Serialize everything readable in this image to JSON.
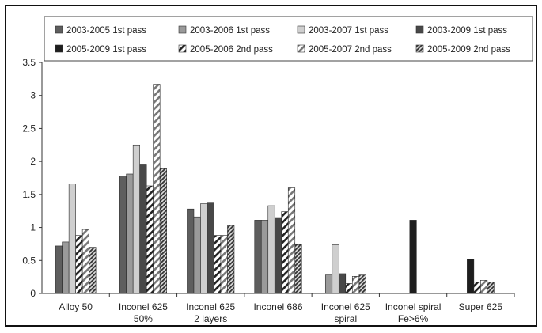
{
  "chart_data": {
    "type": "bar",
    "categories": [
      [
        "Alloy 50"
      ],
      [
        "Inconel 625",
        "50%"
      ],
      [
        "Inconel 625",
        "2 layers"
      ],
      [
        "Inconel 686"
      ],
      [
        "Inconel 625",
        "spiral"
      ],
      [
        "Inconel spiral",
        "Fe>6%"
      ],
      [
        "Super 625"
      ]
    ],
    "ylim": [
      0,
      3.5
    ],
    "yticks": [
      "0",
      "0.5",
      "1",
      "1.5",
      "2",
      "2.5",
      "3",
      "3.5"
    ],
    "grid": false,
    "legend_position": "top",
    "series": [
      {
        "name": "2003-2005 1st pass",
        "color": "#5e5e5e",
        "pattern": "solid",
        "values": [
          0.72,
          1.78,
          1.28,
          1.11,
          null,
          null,
          null
        ]
      },
      {
        "name": "2003-2006 1st pass",
        "color": "#9a9a9a",
        "pattern": "solid",
        "values": [
          0.78,
          1.81,
          1.16,
          1.11,
          0.28,
          null,
          null
        ]
      },
      {
        "name": "2003-2007 1st pass",
        "color": "#cfcfcf",
        "pattern": "solid",
        "values": [
          1.66,
          2.25,
          1.36,
          1.33,
          0.74,
          null,
          null
        ]
      },
      {
        "name": "2003-2009 1st pass",
        "color": "#484848",
        "pattern": "solid",
        "values": [
          null,
          1.96,
          1.37,
          1.15,
          0.3,
          null,
          null
        ]
      },
      {
        "name": "2005-2009 1st pass",
        "color": "#1e1e1e",
        "pattern": "solid",
        "values": [
          null,
          null,
          null,
          null,
          null,
          1.11,
          0.52
        ]
      },
      {
        "name": "2005-2006 2nd pass",
        "color": "#222222",
        "pattern": "diag-wide",
        "values": [
          0.88,
          1.63,
          0.88,
          1.24,
          0.15,
          null,
          0.17
        ]
      },
      {
        "name": "2005-2007 2nd pass",
        "color": "#777777",
        "pattern": "diag-wide",
        "values": [
          0.97,
          3.17,
          0.88,
          1.6,
          0.26,
          null,
          0.2
        ]
      },
      {
        "name": "2005-2009 2nd pass",
        "color": "#333333",
        "pattern": "diag-dense",
        "values": [
          0.7,
          1.89,
          1.03,
          0.74,
          0.28,
          null,
          0.17
        ]
      }
    ]
  }
}
